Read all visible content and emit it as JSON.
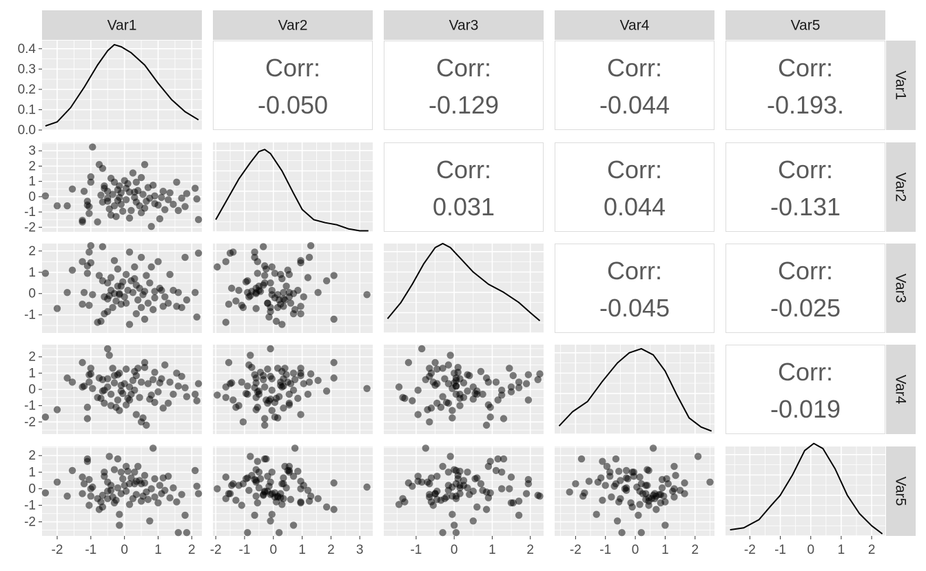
{
  "chart_data": {
    "type": "scatter",
    "variables": [
      "Var1",
      "Var2",
      "Var3",
      "Var4",
      "Var5"
    ],
    "corr_label": "Corr:",
    "correlations": [
      {
        "row": "Var1",
        "col": "Var2",
        "value": "-0.050"
      },
      {
        "row": "Var1",
        "col": "Var3",
        "value": "-0.129"
      },
      {
        "row": "Var1",
        "col": "Var4",
        "value": "-0.044"
      },
      {
        "row": "Var1",
        "col": "Var5",
        "value": "-0.193."
      },
      {
        "row": "Var2",
        "col": "Var3",
        "value": "0.031"
      },
      {
        "row": "Var2",
        "col": "Var4",
        "value": "0.044"
      },
      {
        "row": "Var2",
        "col": "Var5",
        "value": "-0.131"
      },
      {
        "row": "Var3",
        "col": "Var4",
        "value": "-0.045"
      },
      {
        "row": "Var3",
        "col": "Var5",
        "value": "-0.025"
      },
      {
        "row": "Var4",
        "col": "Var5",
        "value": "-0.019"
      }
    ],
    "density_y_ticks": [
      "0.0",
      "0.1",
      "0.2",
      "0.3",
      "0.4"
    ],
    "density_ylim": [
      0,
      0.44
    ],
    "xlim": {
      "Var1": [
        -2.45,
        2.3
      ],
      "Var2": [
        -2.1,
        3.45
      ],
      "Var3": [
        -1.85,
        2.35
      ],
      "Var4": [
        -2.7,
        2.65
      ],
      "Var5": [
        -2.8,
        2.45
      ]
    },
    "ylim": {
      "Var2": [
        -2.3,
        3.55
      ],
      "Var3": [
        -1.85,
        2.35
      ],
      "Var4": [
        -2.75,
        2.75
      ],
      "Var5": [
        -2.85,
        2.55
      ]
    },
    "x_ticks": {
      "Var1": [
        "-2",
        "-1",
        "0",
        "1",
        "2"
      ],
      "Var2": [
        "-2",
        "-1",
        "0",
        "1",
        "2",
        "3"
      ],
      "Var3": [
        "-1",
        "0",
        "1",
        "2"
      ],
      "Var4": [
        "-2",
        "-1",
        "0",
        "1",
        "2"
      ],
      "Var5": [
        "-2",
        "-1",
        "0",
        "1",
        "2"
      ]
    },
    "y_ticks": {
      "Var2": [
        "-2",
        "-1",
        "0",
        "1",
        "2",
        "3"
      ],
      "Var3": [
        "-1",
        "0",
        "1",
        "2"
      ],
      "Var4": [
        "-2",
        "-1",
        "0",
        "1",
        "2"
      ],
      "Var5": [
        "-2",
        "-1",
        "0",
        "1",
        "2"
      ]
    },
    "densities": {
      "Var1": [
        [
          -2.35,
          0.02
        ],
        [
          -2.0,
          0.04
        ],
        [
          -1.6,
          0.11
        ],
        [
          -1.2,
          0.21
        ],
        [
          -0.8,
          0.32
        ],
        [
          -0.5,
          0.39
        ],
        [
          -0.3,
          0.42
        ],
        [
          -0.1,
          0.41
        ],
        [
          0.2,
          0.38
        ],
        [
          0.6,
          0.32
        ],
        [
          1.0,
          0.23
        ],
        [
          1.4,
          0.15
        ],
        [
          1.8,
          0.09
        ],
        [
          2.2,
          0.05
        ]
      ],
      "Var2": [
        [
          -2.0,
          0.06
        ],
        [
          -1.6,
          0.16
        ],
        [
          -1.2,
          0.26
        ],
        [
          -0.8,
          0.34
        ],
        [
          -0.5,
          0.395
        ],
        [
          -0.3,
          0.405
        ],
        [
          -0.1,
          0.385
        ],
        [
          0.3,
          0.3
        ],
        [
          0.7,
          0.19
        ],
        [
          1.0,
          0.11
        ],
        [
          1.4,
          0.06
        ],
        [
          1.8,
          0.045
        ],
        [
          2.2,
          0.035
        ],
        [
          2.6,
          0.015
        ],
        [
          3.0,
          0.005
        ],
        [
          3.3,
          0.005
        ]
      ],
      "Var3": [
        [
          -1.75,
          0.07
        ],
        [
          -1.4,
          0.15
        ],
        [
          -1.1,
          0.24
        ],
        [
          -0.8,
          0.34
        ],
        [
          -0.5,
          0.42
        ],
        [
          -0.3,
          0.44
        ],
        [
          -0.1,
          0.42
        ],
        [
          0.2,
          0.36
        ],
        [
          0.5,
          0.3
        ],
        [
          0.9,
          0.24
        ],
        [
          1.3,
          0.2
        ],
        [
          1.7,
          0.15
        ],
        [
          2.0,
          0.1
        ],
        [
          2.25,
          0.06
        ]
      ],
      "Var4": [
        [
          -2.55,
          0.04
        ],
        [
          -2.1,
          0.11
        ],
        [
          -1.6,
          0.16
        ],
        [
          -1.1,
          0.26
        ],
        [
          -0.6,
          0.35
        ],
        [
          -0.2,
          0.4
        ],
        [
          0.2,
          0.42
        ],
        [
          0.6,
          0.39
        ],
        [
          1.0,
          0.31
        ],
        [
          1.4,
          0.19
        ],
        [
          1.8,
          0.08
        ],
        [
          2.2,
          0.035
        ],
        [
          2.55,
          0.015
        ]
      ],
      "Var5": [
        [
          -2.65,
          0.03
        ],
        [
          -2.2,
          0.04
        ],
        [
          -1.7,
          0.08
        ],
        [
          -1.3,
          0.15
        ],
        [
          -1.0,
          0.2
        ],
        [
          -0.6,
          0.3
        ],
        [
          -0.2,
          0.42
        ],
        [
          0.1,
          0.455
        ],
        [
          0.4,
          0.43
        ],
        [
          0.8,
          0.33
        ],
        [
          1.2,
          0.2
        ],
        [
          1.6,
          0.11
        ],
        [
          2.0,
          0.05
        ],
        [
          2.35,
          0.01
        ]
      ]
    },
    "points": [
      [
        -2.35,
        0.05,
        0.95,
        -1.7,
        -0.25
      ],
      [
        -2.0,
        -0.6,
        -0.7,
        -1.25,
        0.4
      ],
      [
        -1.7,
        -0.6,
        0.05,
        0.7,
        -0.45
      ],
      [
        -1.55,
        0.5,
        1.1,
        0.45,
        1.1
      ],
      [
        -1.25,
        -1.65,
        1.5,
        0.15,
        0.7
      ],
      [
        -1.25,
        -1.55,
        -0.5,
        1.65,
        -0.3
      ],
      [
        -1.2,
        0.35,
        0.05,
        0.2,
        0.3
      ],
      [
        -1.1,
        -0.3,
        1.3,
        -1.8,
        1.8
      ],
      [
        -1.1,
        -0.55,
        0.95,
        -1.1,
        1.65
      ],
      [
        -1.05,
        -1.1,
        -0.55,
        0.45,
        -1.0
      ],
      [
        -1.05,
        -0.65,
        1.95,
        0.9,
        0.55
      ],
      [
        -1.0,
        1.3,
        2.25,
        0.95,
        -0.45
      ],
      [
        -1.0,
        0.95,
        1.45,
        1.3,
        0.0
      ],
      [
        -0.95,
        3.25,
        -0.05,
        0.05,
        0.1
      ],
      [
        -0.8,
        -1.65,
        -1.35,
        -0.5,
        -0.6
      ],
      [
        -0.75,
        2.1,
        0.85,
        0.7,
        -1.25
      ],
      [
        -0.7,
        0.1,
        -1.3,
        -0.55,
        -0.8
      ],
      [
        -0.65,
        1.85,
        0.6,
        -0.1,
        -1.1
      ],
      [
        -0.65,
        -0.35,
        2.2,
        0.6,
        -0.4
      ],
      [
        -0.6,
        0.7,
        -0.95,
        -0.05,
        0.75
      ],
      [
        -0.5,
        -0.1,
        -0.85,
        2.5,
        0.4
      ],
      [
        -0.5,
        0.35,
        -0.25,
        0.65,
        -0.6
      ],
      [
        -0.45,
        -0.8,
        -0.1,
        2.1,
        1.95
      ],
      [
        -0.4,
        -1.2,
        0.15,
        -1.0,
        0.2
      ],
      [
        -0.4,
        1.2,
        0.75,
        -0.3,
        -0.1
      ],
      [
        -0.35,
        0.15,
        -0.65,
        1.3,
        -0.5
      ],
      [
        -0.3,
        -0.6,
        0.0,
        0.4,
        1.15
      ],
      [
        -0.3,
        0.95,
        1.55,
        0.85,
        -0.85
      ],
      [
        -0.25,
        -1.3,
        -0.35,
        -1.1,
        -0.7
      ],
      [
        -0.2,
        0.45,
        0.35,
        0.9,
        0.05
      ],
      [
        -0.2,
        -0.25,
        1.15,
        -0.65,
        1.8
      ],
      [
        -0.15,
        0.7,
        0.0,
        1.0,
        -2.2
      ],
      [
        -0.1,
        -0.5,
        0.35,
        -0.1,
        1.0
      ],
      [
        -0.1,
        0.25,
        -0.5,
        0.25,
        -0.3
      ],
      [
        -0.05,
        -0.95,
        0.55,
        -0.25,
        0.6
      ],
      [
        0.0,
        1.05,
        -0.15,
        0.35,
        0.2
      ],
      [
        0.05,
        0.55,
        0.9,
        -0.95,
        1.35
      ],
      [
        0.05,
        -0.2,
        -0.45,
        1.25,
        -0.15
      ],
      [
        0.1,
        0.85,
        0.15,
        -0.55,
        1.05
      ],
      [
        0.15,
        -1.4,
        1.95,
        -0.65,
        0.3
      ],
      [
        0.15,
        0.3,
        -1.45,
        0.15,
        -0.95
      ],
      [
        0.2,
        -0.9,
        0.6,
        -0.3,
        0.65
      ],
      [
        0.25,
        1.55,
        0.05,
        0.55,
        -0.6
      ],
      [
        0.3,
        -0.05,
        1.25,
        -0.05,
        1.0
      ],
      [
        0.35,
        0.95,
        -0.95,
        -1.55,
        0.45
      ],
      [
        0.35,
        -0.35,
        0.4,
        0.85,
        -0.35
      ],
      [
        0.4,
        0.4,
        -0.3,
        1.3,
        1.35
      ],
      [
        0.45,
        -0.6,
        0.25,
        -0.5,
        0.5
      ],
      [
        0.5,
        1.25,
        1.7,
        0.45,
        -0.75
      ],
      [
        0.5,
        -1.05,
        -0.65,
        -2.0,
        0.3
      ],
      [
        0.55,
        0.15,
        -0.05,
        -1.75,
        -0.45
      ],
      [
        0.6,
        -0.75,
        0.1,
        1.35,
        0.8
      ],
      [
        0.6,
        2.1,
        -1.2,
        1.65,
        0.35
      ],
      [
        0.65,
        -0.3,
        0.85,
        -2.2,
        -0.2
      ],
      [
        0.7,
        0.6,
        -0.45,
        0.35,
        -0.65
      ],
      [
        0.75,
        -0.1,
        0.5,
        -0.6,
        -1.95
      ],
      [
        0.8,
        -1.95,
        1.25,
        -0.35,
        0.0
      ],
      [
        0.85,
        0.75,
        -0.75,
        0.6,
        2.45
      ],
      [
        0.9,
        -0.45,
        0.1,
        1.05,
        0.6
      ],
      [
        0.9,
        0.05,
        -0.2,
        -0.8,
        -0.5
      ],
      [
        1.0,
        -0.55,
        1.5,
        -0.15,
        -0.85
      ],
      [
        1.05,
        -1.45,
        0.25,
        0.4,
        0.2
      ],
      [
        1.1,
        -0.05,
        0.15,
        0.65,
        -0.3
      ],
      [
        1.15,
        0.35,
        -0.6,
        -1.15,
        0.65
      ],
      [
        1.2,
        -0.85,
        -0.15,
        1.5,
        -0.1
      ],
      [
        1.3,
        -0.2,
        -0.45,
        -0.85,
        0.75
      ],
      [
        1.35,
        0.25,
        0.9,
        0.45,
        -0.55
      ],
      [
        1.45,
        -0.5,
        0.15,
        -0.3,
        0.05
      ],
      [
        1.55,
        0.95,
        -0.6,
        1.0,
        -0.8
      ],
      [
        1.6,
        -0.9,
        0.05,
        0.2,
        -2.65
      ],
      [
        1.7,
        -0.1,
        -0.65,
        0.8,
        -0.35
      ],
      [
        1.8,
        -0.65,
        1.7,
        0.1,
        -1.6
      ],
      [
        1.85,
        0.2,
        -0.3,
        -0.45,
        -2.65
      ],
      [
        2.1,
        0.55,
        0.05,
        -0.3,
        1.1
      ],
      [
        2.15,
        -0.15,
        -1.1,
        -0.7,
        0.15
      ],
      [
        2.2,
        -1.5,
        1.9,
        0.35,
        -0.3
      ],
      [
        -0.6,
        0.55,
        -0.15,
        -0.85,
        1.0
      ],
      [
        -0.5,
        -0.3,
        0.5,
        0.15,
        -0.15
      ],
      [
        0.3,
        0.3,
        0.7,
        1.1,
        0.3
      ],
      [
        -0.15,
        -0.05,
        -0.05,
        -1.3,
        -1.55
      ]
    ]
  }
}
